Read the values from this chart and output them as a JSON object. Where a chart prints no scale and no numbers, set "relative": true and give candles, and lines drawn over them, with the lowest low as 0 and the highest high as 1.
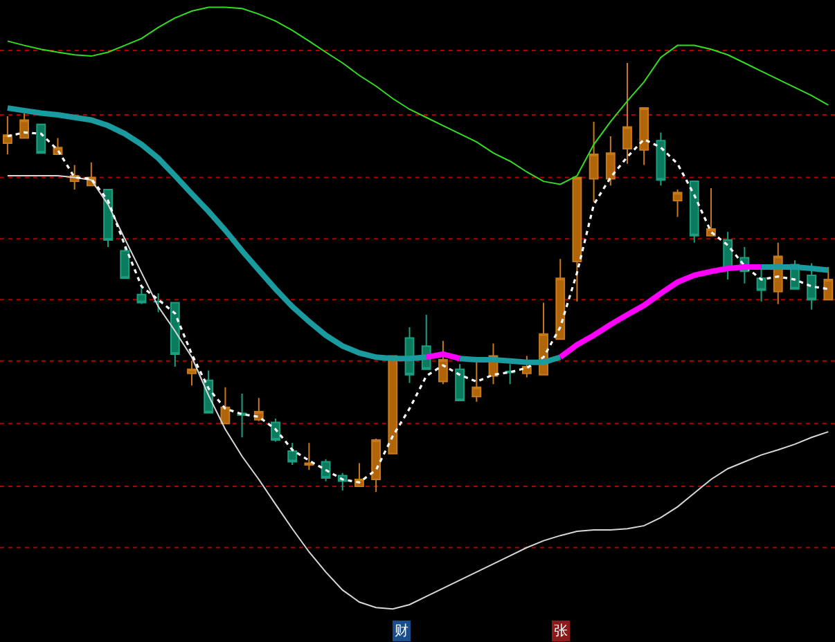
{
  "chart_data": {
    "type": "candlestick",
    "relative": true,
    "categories": [
      null,
      null,
      null,
      null,
      null,
      null,
      null,
      null,
      null,
      null,
      null,
      null,
      null,
      null,
      null,
      null,
      null,
      null,
      null,
      null,
      null,
      null,
      null,
      null,
      null,
      null,
      null,
      null,
      null,
      null,
      null,
      null,
      null,
      null,
      null,
      null,
      null,
      null,
      null,
      null,
      null,
      null,
      null,
      null,
      null,
      null,
      null,
      null,
      null,
      null
    ],
    "ohlc": [
      [
        0.813,
        0.876,
        0.787,
        0.832
      ],
      [
        0.825,
        0.883,
        0.825,
        0.867
      ],
      [
        0.857,
        0.857,
        0.79,
        0.79
      ],
      [
        0.787,
        0.825,
        0.787,
        0.803
      ],
      [
        0.724,
        0.762,
        0.705,
        0.737
      ],
      [
        0.714,
        0.768,
        0.714,
        0.733
      ],
      [
        0.705,
        0.705,
        0.571,
        0.587
      ],
      [
        0.562,
        0.571,
        0.498,
        0.498
      ],
      [
        0.46,
        0.476,
        0.438,
        0.441
      ],
      [
        0.444,
        0.463,
        0.419,
        0.443
      ],
      [
        0.441,
        0.441,
        0.292,
        0.321
      ],
      [
        0.276,
        0.305,
        0.248,
        0.286
      ],
      [
        0.26,
        0.283,
        0.184,
        0.184
      ],
      [
        0.159,
        0.244,
        0.159,
        0.197
      ],
      [
        0.183,
        0.229,
        0.127,
        0.179
      ],
      [
        0.168,
        0.219,
        0.165,
        0.187
      ],
      [
        0.162,
        0.171,
        0.117,
        0.121
      ],
      [
        0.095,
        0.114,
        0.063,
        0.07
      ],
      [
        0.063,
        0.114,
        0.051,
        0.067
      ],
      [
        0.07,
        0.076,
        0.025,
        0.032
      ],
      [
        0.038,
        0.044,
        0.003,
        0.025
      ],
      [
        0.013,
        0.067,
        0.013,
        0.029
      ],
      [
        0.029,
        0.124,
        0,
        0.121
      ],
      [
        0.089,
        0.317,
        0.089,
        0.317
      ],
      [
        0.359,
        0.384,
        0.254,
        0.273
      ],
      [
        0.34,
        0.413,
        0.286,
        0.286
      ],
      [
        0.257,
        0.352,
        0.251,
        0.308
      ],
      [
        0.286,
        0.298,
        0.213,
        0.213
      ],
      [
        0.222,
        0.305,
        0.21,
        0.244
      ],
      [
        0.27,
        0.346,
        0.251,
        0.317
      ],
      [
        0.281,
        0.298,
        0.251,
        0.278
      ],
      [
        0.276,
        0.317,
        0.267,
        0.292
      ],
      [
        0.273,
        0.441,
        0.273,
        0.368
      ],
      [
        0.356,
        0.543,
        0.356,
        0.498
      ],
      [
        0.537,
        0.733,
        0.444,
        0.733
      ],
      [
        0.73,
        0.863,
        0.676,
        0.787
      ],
      [
        0.73,
        0.829,
        0.714,
        0.79
      ],
      [
        0.8,
        1,
        0.765,
        0.851
      ],
      [
        0.797,
        0.895,
        0.762,
        0.895
      ],
      [
        0.819,
        0.838,
        0.714,
        0.727
      ],
      [
        0.679,
        0.705,
        0.641,
        0.698
      ],
      [
        0.724,
        0.724,
        0.581,
        0.597
      ],
      [
        0.597,
        0.708,
        0.597,
        0.613
      ],
      [
        0.587,
        0.606,
        0.495,
        0.521
      ],
      [
        0.546,
        0.571,
        0.486,
        0.514
      ],
      [
        0.498,
        0.521,
        0.444,
        0.47
      ],
      [
        0.467,
        0.581,
        0.438,
        0.549
      ],
      [
        0.53,
        0.54,
        0.473,
        0.473
      ],
      [
        0.505,
        0.533,
        0.425,
        0.448
      ],
      [
        0.448,
        0.524,
        0.448,
        0.495
      ]
    ],
    "series": [
      {
        "type": "line",
        "color": "#33dd22",
        "values": [
          1.051,
          1.041,
          1.032,
          1.025,
          1.019,
          1.016,
          1.025,
          1.041,
          1.057,
          1.083,
          1.105,
          1.121,
          1.13,
          1.13,
          1.127,
          1.114,
          1.098,
          1.076,
          1.051,
          1.025,
          1.0,
          0.971,
          0.946,
          0.917,
          0.892,
          0.873,
          0.854,
          0.835,
          0.816,
          0.79,
          0.771,
          0.746,
          0.724,
          0.717,
          0.737,
          0.81,
          0.863,
          0.911,
          0.956,
          1.013,
          1.041,
          1.041,
          1.032,
          1.019,
          1.0,
          0.981,
          0.962,
          0.943,
          0.924,
          0.902
        ]
      },
      {
        "type": "line",
        "color": "#d8d8d8",
        "values": [
          0.737,
          0.737,
          0.737,
          0.737,
          0.733,
          0.727,
          0.67,
          0.59,
          0.511,
          0.432,
          0.375,
          0.314,
          0.225,
          0.146,
          0.083,
          0.029,
          -0.029,
          -0.086,
          -0.14,
          -0.187,
          -0.229,
          -0.257,
          -0.27,
          -0.273,
          -0.263,
          -0.244,
          -0.225,
          -0.206,
          -0.187,
          -0.168,
          -0.149,
          -0.13,
          -0.114,
          -0.102,
          -0.092,
          -0.089,
          -0.089,
          -0.086,
          -0.079,
          -0.06,
          -0.035,
          -0.003,
          0.029,
          0.054,
          0.07,
          0.086,
          0.098,
          0.111,
          0.127,
          0.14
        ]
      },
      {
        "type": "line",
        "color": "#ffffff",
        "line_style": "dotted",
        "values": [
          0.829,
          0.838,
          0.835,
          0.797,
          0.733,
          0.73,
          0.679,
          0.575,
          0.479,
          0.448,
          0.416,
          0.321,
          0.241,
          0.194,
          0.181,
          0.175,
          0.146,
          0.098,
          0.073,
          0.051,
          0.029,
          0.022,
          0.051,
          0.13,
          0.194,
          0.27,
          0.295,
          0.273,
          0.257,
          0.273,
          0.279,
          0.289,
          0.314,
          0.384,
          0.511,
          0.67,
          0.733,
          0.781,
          0.822,
          0.803,
          0.765,
          0.692,
          0.606,
          0.575,
          0.527,
          0.495,
          0.502,
          0.495,
          0.479,
          0.473
        ]
      },
      {
        "type": "line",
        "color": "#1a9ba0",
        "values": [
          0.895,
          0.889,
          0.883,
          0.879,
          0.873,
          0.867,
          0.854,
          0.835,
          0.81,
          0.778,
          0.737,
          0.695,
          0.654,
          0.61,
          0.562,
          0.517,
          0.473,
          0.432,
          0.397,
          0.365,
          0.34,
          0.324,
          0.314,
          0.311,
          0.311,
          0.314,
          null,
          0.311,
          0.308,
          0.308,
          0.305,
          0.302,
          0.302,
          0.314,
          null,
          null,
          null,
          null,
          null,
          null,
          null,
          null,
          null,
          null,
          null,
          0.524,
          0.524,
          0.524,
          0.521,
          0.517
        ]
      },
      {
        "type": "line",
        "color": "#ff00ff",
        "values": [
          null,
          null,
          null,
          null,
          null,
          null,
          null,
          null,
          null,
          null,
          null,
          null,
          null,
          null,
          null,
          null,
          null,
          null,
          null,
          null,
          null,
          null,
          null,
          null,
          null,
          0.314,
          0.321,
          0.311,
          null,
          null,
          null,
          null,
          null,
          0.314,
          0.343,
          0.365,
          0.39,
          0.413,
          0.435,
          0.463,
          0.489,
          0.505,
          0.514,
          0.521,
          0.524,
          0.524,
          null,
          null,
          null,
          null
        ]
      }
    ],
    "ref_lines": [
      {
        "axis": "y",
        "value": 1.029,
        "color": "#b00000",
        "line_style": "dotted"
      },
      {
        "axis": "y",
        "value": 0.879,
        "color": "#b00000",
        "line_style": "dotted"
      },
      {
        "axis": "y",
        "value": 0.733,
        "color": "#b00000",
        "line_style": "dotted"
      },
      {
        "axis": "y",
        "value": 0.59,
        "color": "#b00000",
        "line_style": "dotted"
      },
      {
        "axis": "y",
        "value": 0.448,
        "color": "#b00000",
        "line_style": "dotted"
      },
      {
        "axis": "y",
        "value": 0.305,
        "color": "#b00000",
        "line_style": "dotted"
      },
      {
        "axis": "y",
        "value": 0.159,
        "color": "#b00000",
        "line_style": "dotted"
      },
      {
        "axis": "y",
        "value": 0.013,
        "color": "#b00000",
        "line_style": "dotted"
      },
      {
        "axis": "y",
        "value": -0.13,
        "color": "#b00000",
        "line_style": "dotted"
      }
    ],
    "annotations": [
      "财",
      "张"
    ]
  }
}
